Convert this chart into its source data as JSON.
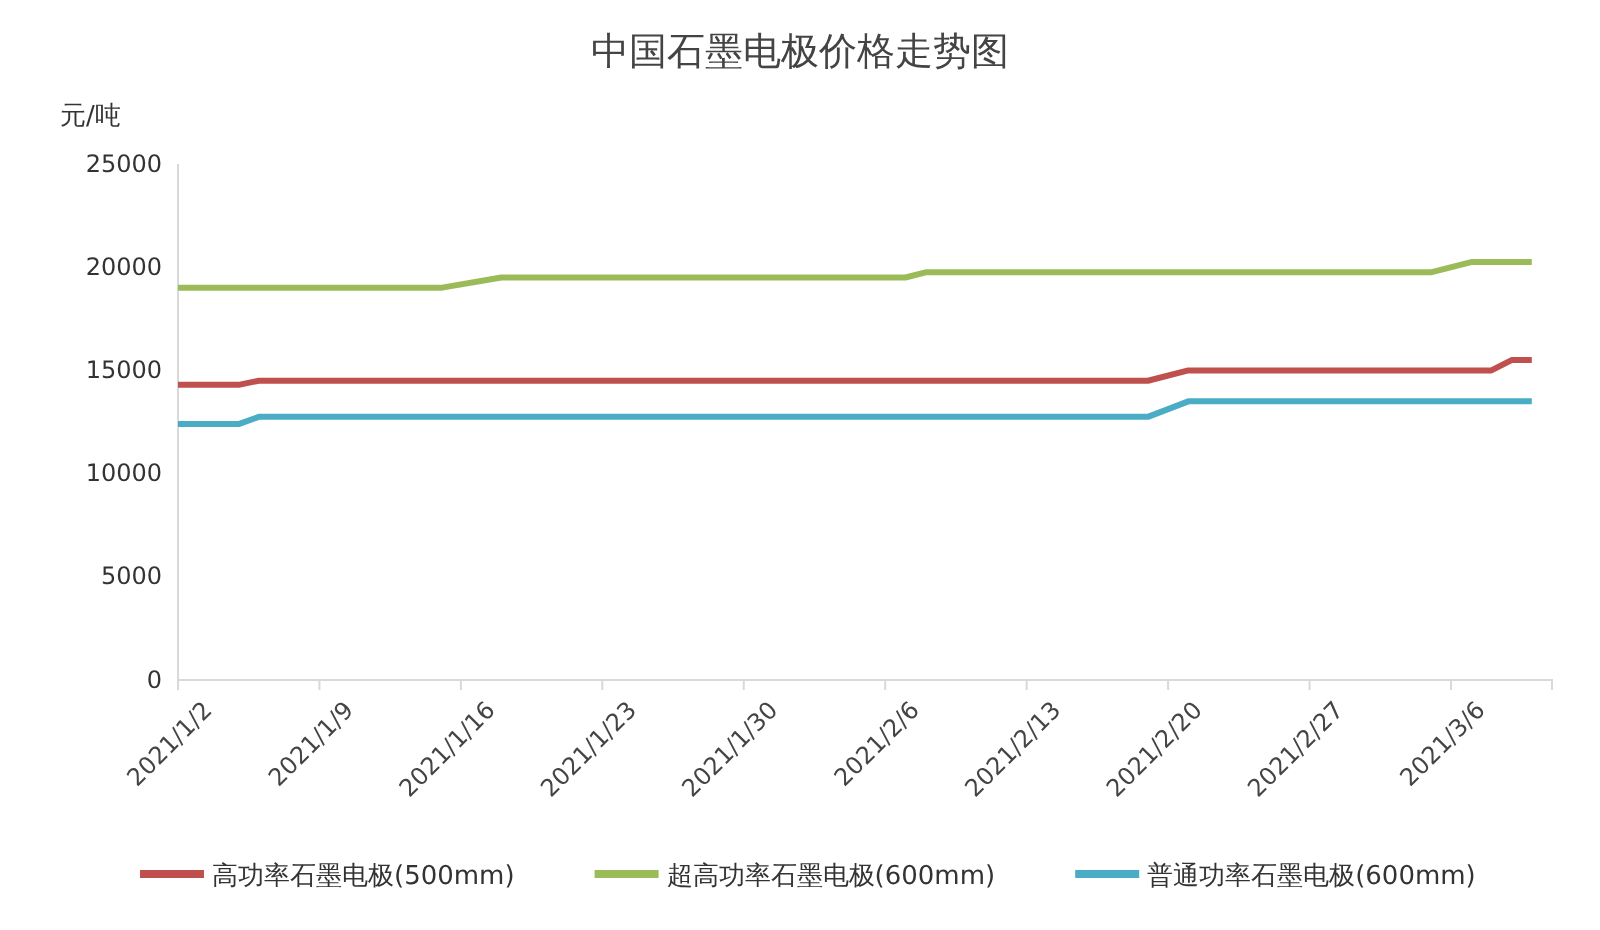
{
  "chart_data": {
    "type": "line",
    "title": "中国石墨电极价格走势图",
    "ylabel": "元/吨",
    "xlim": [
      "2021-01-02",
      "2021-03-11"
    ],
    "xticks": [
      {
        "value": "2021-01-02",
        "label": "2021/1/2"
      },
      {
        "value": "2021-01-09",
        "label": "2021/1/9"
      },
      {
        "value": "2021-01-16",
        "label": "2021/1/16"
      },
      {
        "value": "2021-01-23",
        "label": "2021/1/23"
      },
      {
        "value": "2021-01-30",
        "label": "2021/1/30"
      },
      {
        "value": "2021-02-06",
        "label": "2021/2/6"
      },
      {
        "value": "2021-02-13",
        "label": "2021/2/13"
      },
      {
        "value": "2021-02-20",
        "label": "2021/2/20"
      },
      {
        "value": "2021-02-27",
        "label": "2021/2/27"
      },
      {
        "value": "2021-03-06",
        "label": "2021/3/6"
      }
    ],
    "ylim": [
      0,
      25000
    ],
    "yticks": [
      0,
      5000,
      10000,
      15000,
      20000,
      25000
    ],
    "grid": false,
    "legend": "bottom",
    "marker": "none",
    "line_style": "solid",
    "series": [
      {
        "name": "高功率石墨电极(500mm)",
        "color": "#c0504d",
        "x": [
          "2021-01-02",
          "2021-01-05",
          "2021-01-06",
          "2021-02-19",
          "2021-02-21",
          "2021-03-08",
          "2021-03-09",
          "2021-03-10"
        ],
        "values": [
          14300,
          14300,
          14500,
          14500,
          15000,
          15000,
          15500,
          15500
        ]
      },
      {
        "name": "超高功率石墨电极(600mm)",
        "color": "#9bbb59",
        "x": [
          "2021-01-02",
          "2021-01-15",
          "2021-01-18",
          "2021-02-07",
          "2021-02-08",
          "2021-03-05",
          "2021-03-07",
          "2021-03-10"
        ],
        "values": [
          19000,
          19000,
          19500,
          19500,
          19750,
          19750,
          20250,
          20250
        ]
      },
      {
        "name": "普通功率石墨电极(600mm)",
        "color": "#4bacc6",
        "x": [
          "2021-01-02",
          "2021-01-05",
          "2021-01-06",
          "2021-02-19",
          "2021-02-21",
          "2021-03-10"
        ],
        "values": [
          12400,
          12400,
          12750,
          12750,
          13500,
          13500
        ]
      }
    ]
  }
}
